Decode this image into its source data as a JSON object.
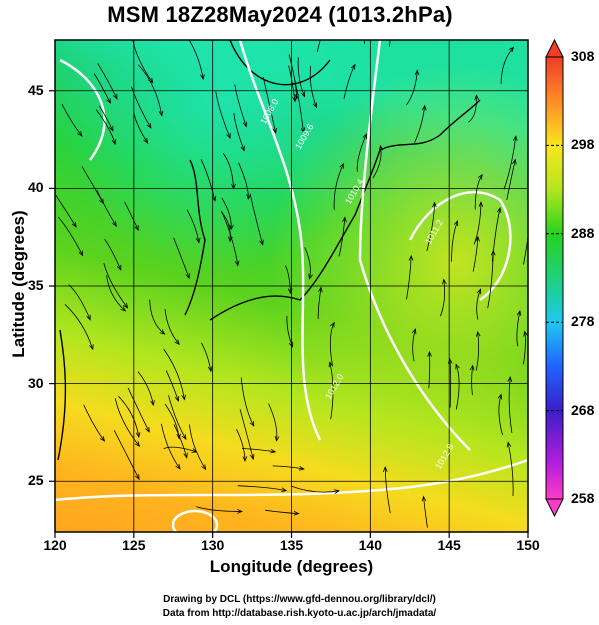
{
  "title": "MSM 18Z28May2024 (1013.2hPa)",
  "chart_data": {
    "type": "map",
    "xlabel": "Longitude (degrees)",
    "ylabel": "Latitude  (degrees)",
    "xlim": [
      120,
      150
    ],
    "ylim": [
      22.4,
      47.6
    ],
    "x_ticks": [
      "120",
      "125",
      "130",
      "135",
      "140",
      "145",
      "150"
    ],
    "y_ticks": [
      "25",
      "30",
      "35",
      "40",
      "45"
    ],
    "x_tick_values": [
      120,
      125,
      130,
      135,
      140,
      145,
      150
    ],
    "y_tick_values": [
      25,
      30,
      35,
      40,
      45
    ],
    "grid": true,
    "colorbar": {
      "range": [
        258,
        308
      ],
      "ticks": [
        "258",
        "268",
        "278",
        "288",
        "298",
        "308"
      ],
      "tick_values": [
        258,
        268,
        278,
        288,
        298,
        308
      ],
      "colors": [
        "#ff3cc8",
        "#c81edc",
        "#5a1ec8",
        "#1e28c8",
        "#1e6eff",
        "#1ec8f0",
        "#1eebb4",
        "#1ed278",
        "#28d21e",
        "#8cdc14",
        "#d2e61e",
        "#fae61e",
        "#ffb41e",
        "#ff7828",
        "#f03c28"
      ]
    },
    "contour_labels": [
      "1008.0",
      "1009.6",
      "1010.4",
      "1011.2",
      "1012.0",
      "1012.8"
    ]
  },
  "credits": {
    "line1": "Drawing by DCL (https://www.gfd-dennou.org/library/dcl/)",
    "line2": "Data from http://database.rish.kyoto-u.ac.jp/arch/jmadata/"
  }
}
